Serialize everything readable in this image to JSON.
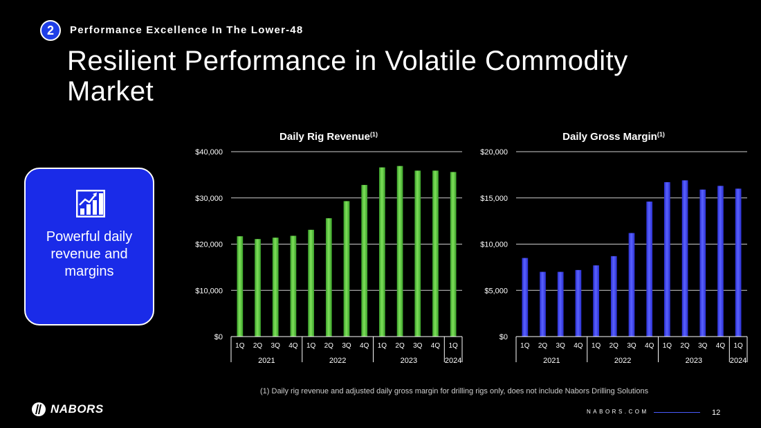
{
  "header": {
    "section_number": "2",
    "section_label": "Performance Excellence In The Lower-48",
    "title": "Resilient Performance in Volatile Commodity Market"
  },
  "feature_card": {
    "icon": "bar-chart-growth-icon",
    "text": "Powerful daily revenue and margins",
    "background": "#1a2be8"
  },
  "chart_data": [
    {
      "type": "bar",
      "title": "Daily Rig Revenue",
      "title_sup": "(1)",
      "xlabel": "",
      "ylabel": "",
      "categories": [
        "1Q",
        "2Q",
        "3Q",
        "4Q",
        "1Q",
        "2Q",
        "3Q",
        "4Q",
        "1Q",
        "2Q",
        "3Q",
        "4Q",
        "1Q"
      ],
      "groups": [
        {
          "label": "2021",
          "count": 4
        },
        {
          "label": "2022",
          "count": 4
        },
        {
          "label": "2023",
          "count": 4
        },
        {
          "label": "2024",
          "count": 1
        }
      ],
      "values": [
        21700,
        21100,
        21400,
        21800,
        23100,
        25600,
        29300,
        32800,
        36600,
        36900,
        35900,
        35900,
        35600
      ],
      "ylim": [
        0,
        40000
      ],
      "yticks": [
        0,
        10000,
        20000,
        30000,
        40000
      ],
      "ytick_labels": [
        "$0",
        "$10,000",
        "$20,000",
        "$30,000",
        "$40,000"
      ],
      "grid": true,
      "bar_color": "#3aa12a",
      "bar_highlight": "#7fe05a"
    },
    {
      "type": "bar",
      "title": "Daily Gross Margin",
      "title_sup": "(1)",
      "xlabel": "",
      "ylabel": "",
      "categories": [
        "1Q",
        "2Q",
        "3Q",
        "4Q",
        "1Q",
        "2Q",
        "3Q",
        "4Q",
        "1Q",
        "2Q",
        "3Q",
        "4Q",
        "1Q"
      ],
      "groups": [
        {
          "label": "2021",
          "count": 4
        },
        {
          "label": "2022",
          "count": 4
        },
        {
          "label": "2023",
          "count": 4
        },
        {
          "label": "2024",
          "count": 1
        }
      ],
      "values": [
        8500,
        7000,
        7000,
        7200,
        7700,
        8700,
        11200,
        14600,
        16700,
        16900,
        15900,
        16300,
        16000
      ],
      "ylim": [
        0,
        20000
      ],
      "yticks": [
        0,
        5000,
        10000,
        15000,
        20000
      ],
      "ytick_labels": [
        "$0",
        "$5,000",
        "$10,000",
        "$15,000",
        "$20,000"
      ],
      "grid": true,
      "bar_color": "#2a2fd0",
      "bar_highlight": "#5a62ff"
    }
  ],
  "footnote": "(1)   Daily rig revenue and adjusted daily gross margin for drilling rigs only, does not include Nabors Drilling Solutions",
  "footer": {
    "brand": "NABORS",
    "brand_icon": "nabors-logo-icon",
    "site": "NABORS.COM",
    "page_number": "12"
  }
}
